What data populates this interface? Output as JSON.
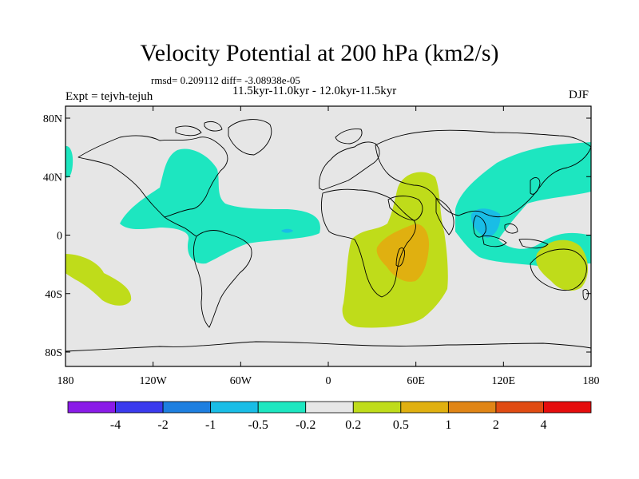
{
  "title": "Velocity Potential at 200 hPa (km2/s)",
  "stats": "rmsd= 0.209112 diff= -3.08938e-05",
  "period": "11.5kyr-11.0kyr - 12.0kyr-11.5kyr",
  "experiment": "Expt = tejvh-tejuh",
  "season": "DJF",
  "axes": {
    "x_ticks": [
      "180",
      "120W",
      "60W",
      "0",
      "60E",
      "120E",
      "180"
    ],
    "y_ticks": [
      "80N",
      "40N",
      "0",
      "40S",
      "80S"
    ]
  },
  "colorbar": {
    "labels": [
      "-4",
      "-2",
      "-1",
      "-0.5",
      "-0.2",
      "0.2",
      "0.5",
      "1",
      "2",
      "4"
    ],
    "colors": [
      "#8a1be8",
      "#3a3aee",
      "#1e7fe0",
      "#19bde6",
      "#1de6c0",
      "#e6e6e6",
      "#bfdc1a",
      "#e0b010",
      "#e08516",
      "#e04b12",
      "#e50d0d"
    ]
  },
  "colors": {
    "background": "#e6e6e6",
    "neg_weak": "#1de6c0",
    "neg_mod": "#19bde6",
    "neg_strong": "#1e7fe0",
    "pos_weak": "#bfdc1a",
    "pos_mod": "#e0b010"
  }
}
